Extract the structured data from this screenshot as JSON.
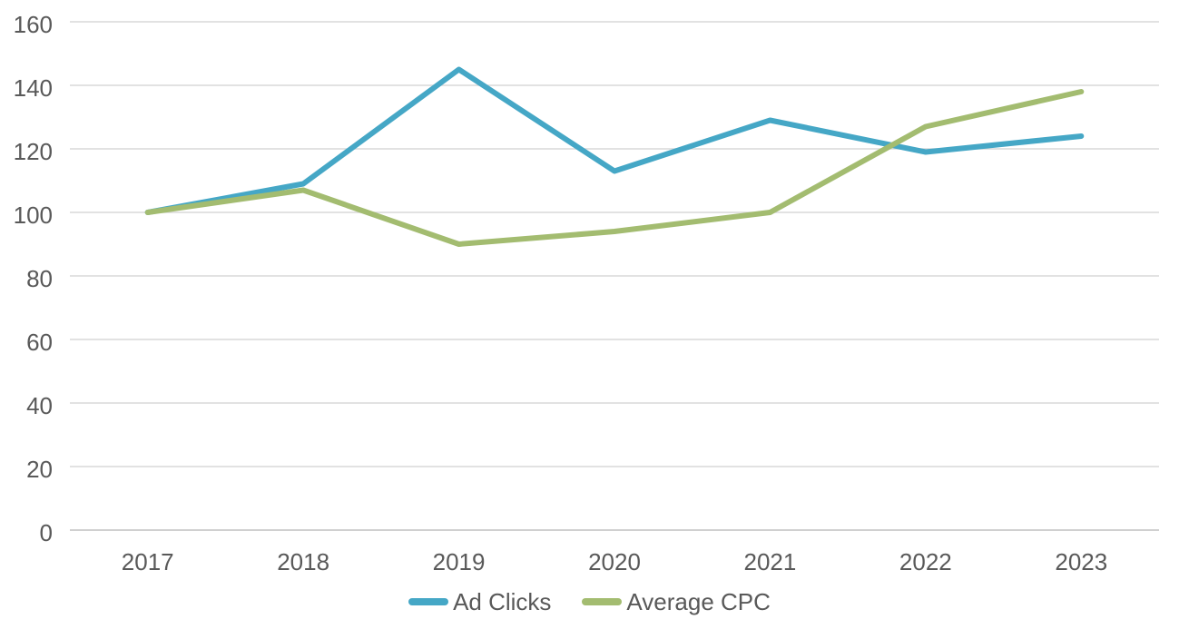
{
  "chart_data": {
    "type": "line",
    "title": "",
    "xlabel": "",
    "ylabel": "",
    "categories": [
      "2017",
      "2018",
      "2019",
      "2020",
      "2021",
      "2022",
      "2023"
    ],
    "series": [
      {
        "name": "Ad Clicks",
        "color": "#45A7C6",
        "values": [
          100,
          109,
          145,
          113,
          129,
          119,
          124
        ]
      },
      {
        "name": "Average CPC",
        "color": "#A3BC70",
        "values": [
          100,
          107,
          90,
          94,
          100,
          127,
          138
        ]
      }
    ],
    "ylim": [
      0,
      160
    ],
    "yticks": [
      0,
      20,
      40,
      60,
      80,
      100,
      120,
      140,
      160
    ],
    "grid": "horizontal",
    "legend_position": "bottom"
  },
  "colors": {
    "background": "#FFFFFF",
    "gridline": "#D9D9D9",
    "axis_line": "#C0C0C0",
    "tick_label": "#595959",
    "legend_label": "#595959"
  }
}
